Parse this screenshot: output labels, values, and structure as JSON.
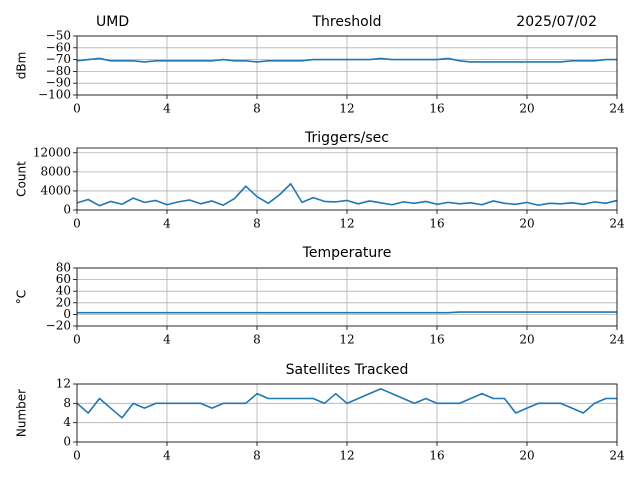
{
  "header": {
    "left": "UMD",
    "right": "2025/07/02"
  },
  "chart_data": [
    {
      "type": "line",
      "title": "Threshold",
      "y_label": "dBm",
      "x": [
        0,
        0.5,
        1,
        1.5,
        2,
        2.5,
        3,
        3.5,
        4,
        4.5,
        5,
        5.5,
        6,
        6.5,
        7,
        7.5,
        8,
        8.5,
        9,
        9.5,
        10,
        10.5,
        11,
        11.5,
        12,
        12.5,
        13,
        13.5,
        14,
        14.5,
        15,
        15.5,
        16,
        16.5,
        17,
        17.5,
        18,
        18.5,
        19,
        19.5,
        20,
        20.5,
        21,
        21.5,
        22,
        22.5,
        23,
        23.5,
        24
      ],
      "series": [
        {
          "color": "#1f77b4",
          "values": [
            -71,
            -70,
            -69,
            -71,
            -71,
            -71,
            -72,
            -71,
            -71,
            -71,
            -71,
            -71,
            -71,
            -70,
            -71,
            -71,
            -72,
            -71,
            -71,
            -71,
            -71,
            -70,
            -70,
            -70,
            -70,
            -70,
            -70,
            -69,
            -70,
            -70,
            -70,
            -70,
            -70,
            -69,
            -71,
            -72,
            -72,
            -72,
            -72,
            -72,
            -72,
            -72,
            -72,
            -72,
            -71,
            -71,
            -71,
            -70,
            -70
          ]
        }
      ],
      "xlim": [
        0,
        24
      ],
      "xticks": [
        0,
        4,
        8,
        12,
        16,
        20,
        24
      ],
      "ylim": [
        -100,
        -50
      ],
      "yticks": [
        {
          "value": -100,
          "label": "−100"
        },
        {
          "value": -90,
          "label": "−90"
        },
        {
          "value": -80,
          "label": "−80"
        },
        {
          "value": -70,
          "label": "−70"
        },
        {
          "value": -60,
          "label": "−60"
        },
        {
          "value": -50,
          "label": "−50"
        }
      ],
      "grid": true
    },
    {
      "type": "line",
      "title": "Triggers/sec",
      "y_label": "Count",
      "x": [
        0,
        0.5,
        1,
        1.5,
        2,
        2.5,
        3,
        3.5,
        4,
        4.5,
        5,
        5.5,
        6,
        6.5,
        7,
        7.5,
        8,
        8.5,
        9,
        9.5,
        10,
        10.5,
        11,
        11.5,
        12,
        12.5,
        13,
        13.5,
        14,
        14.5,
        15,
        15.5,
        16,
        16.5,
        17,
        17.5,
        18,
        18.5,
        19,
        19.5,
        20,
        20.5,
        21,
        21.5,
        22,
        22.5,
        23,
        23.5,
        24
      ],
      "series": [
        {
          "color": "#1f77b4",
          "values": [
            1500,
            2200,
            900,
            1800,
            1200,
            2500,
            1600,
            2000,
            1100,
            1700,
            2100,
            1300,
            1900,
            1000,
            2400,
            5000,
            2800,
            1400,
            3200,
            5500,
            1600,
            2600,
            1800,
            1700,
            2000,
            1300,
            1900,
            1500,
            1100,
            1700,
            1400,
            1800,
            1200,
            1600,
            1300,
            1500,
            1100,
            1900,
            1400,
            1200,
            1600,
            1000,
            1400,
            1300,
            1500,
            1200,
            1700,
            1400,
            2000
          ]
        }
      ],
      "xlim": [
        0,
        24
      ],
      "xticks": [
        0,
        4,
        8,
        12,
        16,
        20,
        24
      ],
      "ylim": [
        0,
        13000
      ],
      "yticks": [
        0,
        4000,
        8000,
        12000
      ],
      "grid": true
    },
    {
      "type": "line",
      "title": "Temperature",
      "y_label": "°C",
      "x": [
        0,
        0.5,
        1,
        1.5,
        2,
        2.5,
        3,
        3.5,
        4,
        4.5,
        5,
        5.5,
        6,
        6.5,
        7,
        7.5,
        8,
        8.5,
        9,
        9.5,
        10,
        10.5,
        11,
        11.5,
        12,
        12.5,
        13,
        13.5,
        14,
        14.5,
        15,
        15.5,
        16,
        16.5,
        17,
        17.5,
        18,
        18.5,
        19,
        19.5,
        20,
        20.5,
        21,
        21.5,
        22,
        22.5,
        23,
        23.5,
        24
      ],
      "series": [
        {
          "color": "#1f77b4",
          "values": [
            3,
            3,
            3,
            3,
            3,
            3,
            3,
            3,
            3,
            3,
            3,
            3,
            3,
            3,
            3,
            3,
            3,
            3,
            3,
            3,
            3,
            3,
            3,
            3,
            3,
            3,
            3,
            3,
            3,
            3,
            3,
            3,
            3,
            3,
            4,
            4,
            4,
            4,
            4,
            4,
            4,
            4,
            4,
            4,
            4,
            4,
            4,
            4,
            4
          ]
        }
      ],
      "xlim": [
        0,
        24
      ],
      "xticks": [
        0,
        4,
        8,
        12,
        16,
        20,
        24
      ],
      "ylim": [
        -20,
        80
      ],
      "yticks": [
        {
          "value": -20,
          "label": "−20"
        },
        0,
        20,
        40,
        60,
        80
      ],
      "grid": true
    },
    {
      "type": "line",
      "title": "Satellites Tracked",
      "y_label": "Number",
      "x": [
        0,
        0.5,
        1,
        1.5,
        2,
        2.5,
        3,
        3.5,
        4,
        4.5,
        5,
        5.5,
        6,
        6.5,
        7,
        7.5,
        8,
        8.5,
        9,
        9.5,
        10,
        10.5,
        11,
        11.5,
        12,
        12.5,
        13,
        13.5,
        14,
        14.5,
        15,
        15.5,
        16,
        16.5,
        17,
        17.5,
        18,
        18.5,
        19,
        19.5,
        20,
        20.5,
        21,
        21.5,
        22,
        22.5,
        23,
        23.5,
        24
      ],
      "series": [
        {
          "color": "#1f77b4",
          "values": [
            8,
            6,
            9,
            7,
            5,
            8,
            7,
            8,
            8,
            8,
            8,
            8,
            7,
            8,
            8,
            8,
            10,
            9,
            9,
            9,
            9,
            9,
            8,
            10,
            8,
            9,
            10,
            11,
            10,
            9,
            8,
            9,
            8,
            8,
            8,
            9,
            10,
            9,
            9,
            6,
            7,
            8,
            8,
            8,
            7,
            6,
            8,
            9,
            9
          ]
        }
      ],
      "xlim": [
        0,
        24
      ],
      "xticks": [
        0,
        4,
        8,
        12,
        16,
        20,
        24
      ],
      "ylim": [
        0,
        12
      ],
      "yticks": [
        0,
        4,
        8,
        12
      ],
      "grid": true
    }
  ]
}
